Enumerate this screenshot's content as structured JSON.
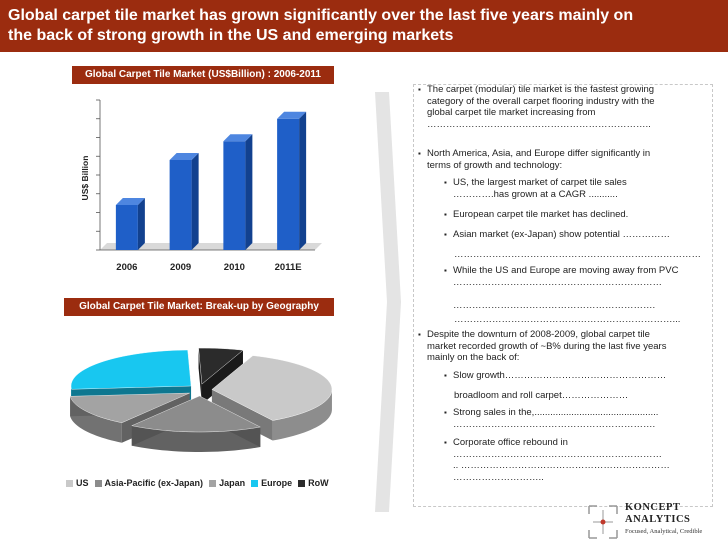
{
  "header": {
    "title_line1": "Global carpet tile market has grown significantly over the last five years mainly on",
    "title_line2": "the back of strong growth in the US and emerging markets"
  },
  "colors": {
    "header_bg": "#9b2c0f",
    "bar": "#1f5fc8",
    "accent": "#c0392b"
  },
  "bar_panel": {
    "title": "Global Carpet Tile Market (US$Billion) : 2006-2011"
  },
  "pie_panel": {
    "title": "Global Carpet Tile Market: Break-up by Geography"
  },
  "chart_data": [
    {
      "type": "bar",
      "title": "Global Carpet Tile Market (US$Billion) : 2006-2011",
      "categories": [
        "2006",
        "2009",
        "2010",
        "2011E"
      ],
      "values": [
        2.4,
        4.8,
        5.8,
        7.0
      ],
      "ylabel": "US$ Billion",
      "ylim": [
        0,
        8
      ],
      "grid": false,
      "legend": "none"
    },
    {
      "type": "pie",
      "title": "Global Carpet Tile Market: Break-up by Geography",
      "categories": [
        "US",
        "Asia-Pacific (ex-Japan)",
        "Japan",
        "Europe",
        "RoW"
      ],
      "values": [
        36,
        18,
        14,
        26,
        6
      ],
      "colors": [
        "#c9c9c9",
        "#8c8c8c",
        "#a3a3a3",
        "#18c7f0",
        "#2b2b2b"
      ],
      "legend": "bottom"
    }
  ],
  "bullets": [
    {
      "level": 1,
      "lines": [
        "The carpet (modular) tile market is the fastest growing",
        "category of the overall carpet flooring industry with the",
        "global carpet tile market increasing from",
        "…………………………………………………………….."
      ]
    },
    {
      "level": 1,
      "lines": [
        "North America, Asia, and Europe differ significantly in",
        "terms of growth and technology:"
      ]
    },
    {
      "level": 2,
      "lines": [
        "US, the largest market of carpet tile sales",
        "………….has grown at a CAGR ..........."
      ]
    },
    {
      "level": 2,
      "lines": [
        "European carpet tile market has declined."
      ]
    },
    {
      "level": 2,
      "lines": [
        "Asian market (ex-Japan) show potential ……………"
      ]
    },
    {
      "level": 0,
      "lines": [
        "……………………………………………………………………"
      ]
    },
    {
      "level": 2,
      "lines": [
        "While the US and Europe are moving away from PVC",
        "…………………………………………………………",
        "",
        "………………………………………………………."
      ]
    },
    {
      "level": 0,
      "lines": [
        "……………………………………………………………..."
      ]
    },
    {
      "level": 1,
      "lines": [
        "Despite the downturn of 2008-2009, global carpet tile",
        "market recorded growth of ~B% during the last five years",
        "mainly on the back of:"
      ]
    },
    {
      "level": 2,
      "lines": [
        "Slow growth……………………………………………"
      ]
    },
    {
      "level": 0,
      "lines": [
        "broadloom and roll carpet…………………"
      ]
    },
    {
      "level": 2,
      "lines": [
        "Strong sales in the,...............................................",
        "………………………………………………………."
      ]
    },
    {
      "level": 2,
      "lines": [
        "Corporate office rebound in",
        "…………………………………………………………",
        ".. …………………………………………………………",
        "……………………….."
      ]
    }
  ],
  "logo": {
    "name_line1": "KONCEPT",
    "name_line2": "ANALYTICS",
    "tagline": "Focused, Analytical, Credible"
  }
}
